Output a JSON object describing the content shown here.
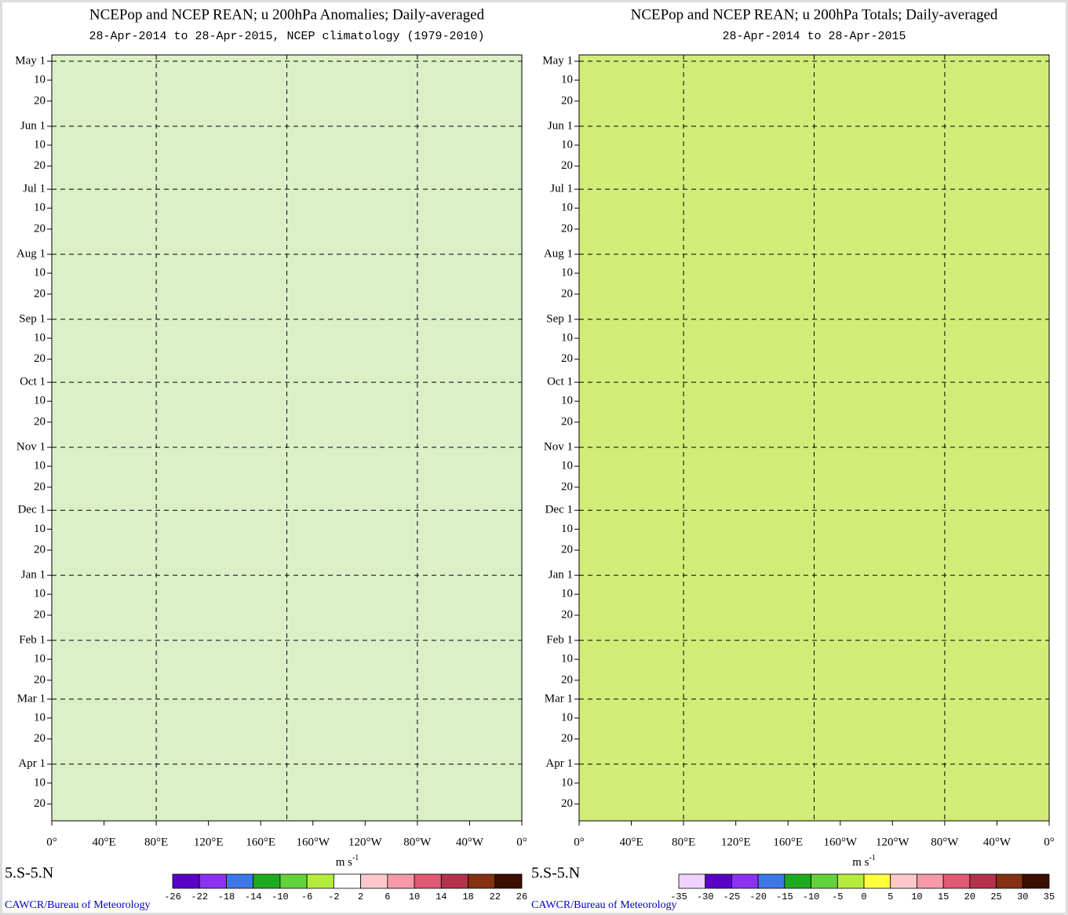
{
  "panels": [
    {
      "title": "NCEPop and NCEP REAN; u 200hPa Anomalies; Daily-averaged",
      "subtitle": "28-Apr-2014 to 28-Apr-2015, NCEP climatology (1979-2010)",
      "yticks": [
        "May 1",
        "10",
        "20",
        "Jun 1",
        "10",
        "20",
        "Jul 1",
        "10",
        "20",
        "Aug 1",
        "10",
        "20",
        "Sep 1",
        "10",
        "20",
        "Oct 1",
        "10",
        "20",
        "Nov 1",
        "10",
        "20",
        "Dec 1",
        "10",
        "20",
        "Jan 1",
        "10",
        "20",
        "Feb 1",
        "10",
        "20",
        "Mar 1",
        "10",
        "20",
        "Apr 1",
        "10",
        "20"
      ],
      "xticks": [
        "0°",
        "40°E",
        "80°E",
        "120°E",
        "160°E",
        "160°W",
        "120°W",
        "80°W",
        "40°W",
        "0°"
      ],
      "region": "5.S-5.N",
      "credit": "CAWCR/Bureau of Meteorology",
      "units": "m s",
      "units_exp": "-1",
      "colorbar": {
        "colors": [
          "#5a00c8",
          "#8c32f0",
          "#3c78e6",
          "#1eaa1e",
          "#64d23c",
          "#b4ec3c",
          "#ffffff",
          "#ffc8cc",
          "#f59aa6",
          "#e05a73",
          "#b4324b",
          "#82320f",
          "#3c0f00"
        ],
        "labels": [
          "-26",
          "-22",
          "-18",
          "-14",
          "-10",
          "-6",
          "-2",
          "2",
          "6",
          "10",
          "14",
          "18",
          "22",
          "26"
        ]
      }
    },
    {
      "title": "NCEPop and NCEP REAN; u 200hPa Totals; Daily-averaged",
      "subtitle": "28-Apr-2014 to 28-Apr-2015",
      "yticks": [
        "May 1",
        "10",
        "20",
        "Jun 1",
        "10",
        "20",
        "Jul 1",
        "10",
        "20",
        "Aug 1",
        "10",
        "20",
        "Sep 1",
        "10",
        "20",
        "Oct 1",
        "10",
        "20",
        "Nov 1",
        "10",
        "20",
        "Dec 1",
        "10",
        "20",
        "Jan 1",
        "10",
        "20",
        "Feb 1",
        "10",
        "20",
        "Mar 1",
        "10",
        "20",
        "Apr 1",
        "10",
        "20"
      ],
      "xticks": [
        "0°",
        "40°E",
        "80°E",
        "120°E",
        "160°E",
        "160°W",
        "120°W",
        "80°W",
        "40°W",
        "0°"
      ],
      "region": "5.S-5.N",
      "credit": "CAWCR/Bureau of Meteorology",
      "units": "m s",
      "units_exp": "-1",
      "colorbar": {
        "colors": [
          "#f0d2ff",
          "#5a00c8",
          "#8c32f0",
          "#3c78e6",
          "#1eaa1e",
          "#64d23c",
          "#b4ec3c",
          "#ffff3c",
          "#ffc8cc",
          "#f59aa6",
          "#e05a73",
          "#b4324b",
          "#82320f",
          "#3c0f00"
        ],
        "labels": [
          "-35",
          "-30",
          "-25",
          "-20",
          "-15",
          "-10",
          "-5",
          "0",
          "5",
          "10",
          "15",
          "20",
          "25",
          "30",
          "35"
        ]
      }
    }
  ]
}
